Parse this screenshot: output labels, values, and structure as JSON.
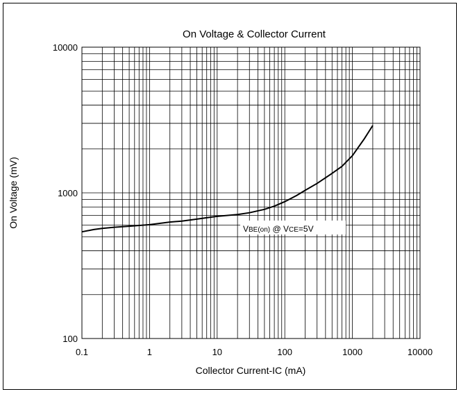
{
  "chart_data": {
    "type": "line",
    "title": "On Voltage & Collector Current",
    "xlabel": "Collector Current-IC (mA)",
    "ylabel": "On Voltage (mV)",
    "x_scale": "log",
    "y_scale": "log",
    "xlim": [
      0.1,
      10000
    ],
    "ylim": [
      100,
      10000
    ],
    "grid": true,
    "x_ticks": [
      "0.1",
      "1",
      "10",
      "100",
      "1000",
      "10000"
    ],
    "y_ticks": [
      "100",
      "1000",
      "10000"
    ],
    "series": [
      {
        "x": [
          0.1,
          0.15,
          0.2,
          0.3,
          0.5,
          1,
          2,
          3,
          5,
          7,
          10,
          20,
          30,
          50,
          70,
          100,
          150,
          200,
          300,
          500,
          700,
          1000,
          1500,
          2000
        ],
        "y": [
          540,
          560,
          570,
          580,
          590,
          605,
          630,
          640,
          660,
          675,
          690,
          710,
          730,
          770,
          810,
          870,
          960,
          1040,
          1160,
          1360,
          1520,
          1800,
          2350,
          2900
        ]
      }
    ],
    "annotation": {
      "main1": "V",
      "sub1": "BE(on)",
      "mid": " @ V",
      "sub2": "CE",
      "tail": "=5V"
    }
  }
}
